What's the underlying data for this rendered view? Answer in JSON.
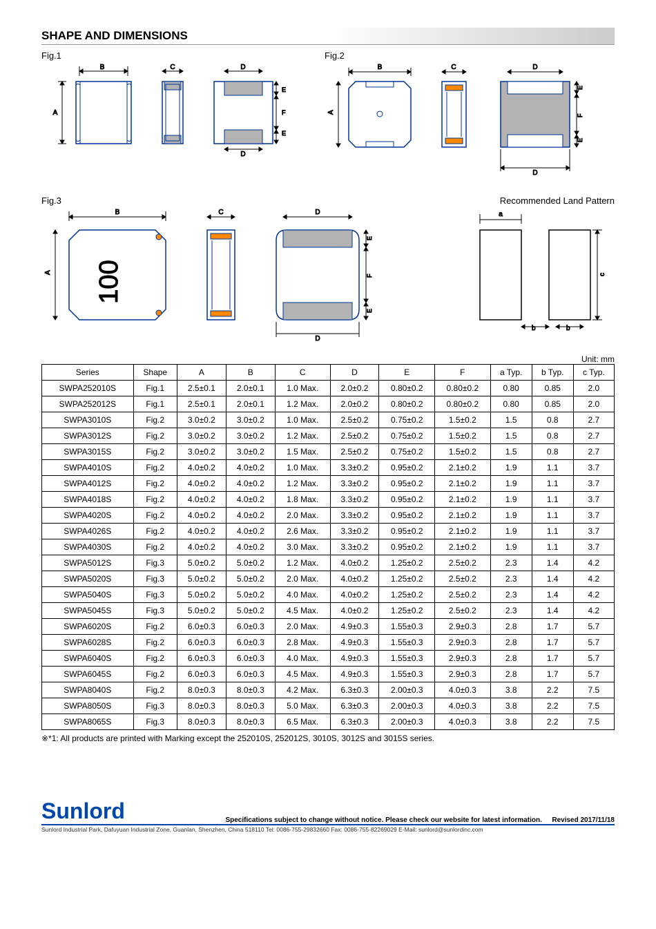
{
  "section_title": "SHAPE AND DIMENSIONS",
  "labels": {
    "fig1": "Fig.1",
    "fig2": "Fig.2",
    "fig3": "Fig.3",
    "land_pattern": "Recommended Land Pattern",
    "unit": "Unit: mm"
  },
  "table": {
    "columns": [
      "Series",
      "Shape",
      "A",
      "B",
      "C",
      "D",
      "E",
      "F",
      "a Typ.",
      "b Typ.",
      "c Typ."
    ],
    "rows": [
      [
        "SWPA252010S",
        "Fig.1",
        "2.5±0.1",
        "2.0±0.1",
        "1.0 Max.",
        "2.0±0.2",
        "0.80±0.2",
        "0.80±0.2",
        "0.80",
        "0.85",
        "2.0"
      ],
      [
        "SWPA252012S",
        "Fig.1",
        "2.5±0.1",
        "2.0±0.1",
        "1.2 Max.",
        "2.0±0.2",
        "0.80±0.2",
        "0.80±0.2",
        "0.80",
        "0.85",
        "2.0"
      ],
      [
        "SWPA3010S",
        "Fig.2",
        "3.0±0.2",
        "3.0±0.2",
        "1.0 Max.",
        "2.5±0.2",
        "0.75±0.2",
        "1.5±0.2",
        "1.5",
        "0.8",
        "2.7"
      ],
      [
        "SWPA3012S",
        "Fig.2",
        "3.0±0.2",
        "3.0±0.2",
        "1.2 Max.",
        "2.5±0.2",
        "0.75±0.2",
        "1.5±0.2",
        "1.5",
        "0.8",
        "2.7"
      ],
      [
        "SWPA3015S",
        "Fig.2",
        "3.0±0.2",
        "3.0±0.2",
        "1.5 Max.",
        "2.5±0.2",
        "0.75±0.2",
        "1.5±0.2",
        "1.5",
        "0.8",
        "2.7"
      ],
      [
        "SWPA4010S",
        "Fig.2",
        "4.0±0.2",
        "4.0±0.2",
        "1.0 Max.",
        "3.3±0.2",
        "0.95±0.2",
        "2.1±0.2",
        "1.9",
        "1.1",
        "3.7"
      ],
      [
        "SWPA4012S",
        "Fig.2",
        "4.0±0.2",
        "4.0±0.2",
        "1.2 Max.",
        "3.3±0.2",
        "0.95±0.2",
        "2.1±0.2",
        "1.9",
        "1.1",
        "3.7"
      ],
      [
        "SWPA4018S",
        "Fig.2",
        "4.0±0.2",
        "4.0±0.2",
        "1.8 Max.",
        "3.3±0.2",
        "0.95±0.2",
        "2.1±0.2",
        "1.9",
        "1.1",
        "3.7"
      ],
      [
        "SWPA4020S",
        "Fig.2",
        "4.0±0.2",
        "4.0±0.2",
        "2.0 Max.",
        "3.3±0.2",
        "0.95±0.2",
        "2.1±0.2",
        "1.9",
        "1.1",
        "3.7"
      ],
      [
        "SWPA4026S",
        "Fig.2",
        "4.0±0.2",
        "4.0±0.2",
        "2.6 Max.",
        "3.3±0.2",
        "0.95±0.2",
        "2.1±0.2",
        "1.9",
        "1.1",
        "3.7"
      ],
      [
        "SWPA4030S",
        "Fig.2",
        "4.0±0.2",
        "4.0±0.2",
        "3.0 Max.",
        "3.3±0.2",
        "0.95±0.2",
        "2.1±0.2",
        "1.9",
        "1.1",
        "3.7"
      ],
      [
        "SWPA5012S",
        "Fig.3",
        "5.0±0.2",
        "5.0±0.2",
        "1.2 Max.",
        "4.0±0.2",
        "1.25±0.2",
        "2.5±0.2",
        "2.3",
        "1.4",
        "4.2"
      ],
      [
        "SWPA5020S",
        "Fig.3",
        "5.0±0.2",
        "5.0±0.2",
        "2.0 Max.",
        "4.0±0.2",
        "1.25±0.2",
        "2.5±0.2",
        "2.3",
        "1.4",
        "4.2"
      ],
      [
        "SWPA5040S",
        "Fig.3",
        "5.0±0.2",
        "5.0±0.2",
        "4.0 Max.",
        "4.0±0.2",
        "1.25±0.2",
        "2.5±0.2",
        "2.3",
        "1.4",
        "4.2"
      ],
      [
        "SWPA5045S",
        "Fig.3",
        "5.0±0.2",
        "5.0±0.2",
        "4.5 Max.",
        "4.0±0.2",
        "1.25±0.2",
        "2.5±0.2",
        "2.3",
        "1.4",
        "4.2"
      ],
      [
        "SWPA6020S",
        "Fig.2",
        "6.0±0.3",
        "6.0±0.3",
        "2.0 Max.",
        "4.9±0.3",
        "1.55±0.3",
        "2.9±0.3",
        "2.8",
        "1.7",
        "5.7"
      ],
      [
        "SWPA6028S",
        "Fig.2",
        "6.0±0.3",
        "6.0±0.3",
        "2.8 Max.",
        "4.9±0.3",
        "1.55±0.3",
        "2.9±0.3",
        "2.8",
        "1.7",
        "5.7"
      ],
      [
        "SWPA6040S",
        "Fig.2",
        "6.0±0.3",
        "6.0±0.3",
        "4.0 Max.",
        "4.9±0.3",
        "1.55±0.3",
        "2.9±0.3",
        "2.8",
        "1.7",
        "5.7"
      ],
      [
        "SWPA6045S",
        "Fig.2",
        "6.0±0.3",
        "6.0±0.3",
        "4.5 Max.",
        "4.9±0.3",
        "1.55±0.3",
        "2.9±0.3",
        "2.8",
        "1.7",
        "5.7"
      ],
      [
        "SWPA8040S",
        "Fig.2",
        "8.0±0.3",
        "8.0±0.3",
        "4.2 Max.",
        "6.3±0.3",
        "2.00±0.3",
        "4.0±0.3",
        "3.8",
        "2.2",
        "7.5"
      ],
      [
        "SWPA8050S",
        "Fig.3",
        "8.0±0.3",
        "8.0±0.3",
        "5.0 Max.",
        "6.3±0.3",
        "2.00±0.3",
        "4.0±0.3",
        "3.8",
        "2.2",
        "7.5"
      ],
      [
        "SWPA8065S",
        "Fig.3",
        "8.0±0.3",
        "8.0±0.3",
        "6.5 Max.",
        "6.3±0.3",
        "2.00±0.3",
        "4.0±0.3",
        "3.8",
        "2.2",
        "7.5"
      ]
    ]
  },
  "footnote": "※*1: All products are printed with Marking except the 252010S, 252012S, 3010S, 3012S and 3015S series.",
  "footer": {
    "logo": "Sunlord",
    "note": "Specifications subject to change without notice. Please check our website for latest information.",
    "revised": "Revised 2017/11/18",
    "contact": "Sunlord Industrial Park, Dafuyuan Industrial Zone, Guanlan, Shenzhen, China 518110 Tel: 0086-755-29832660 Fax: 0086-755-82269029 E-Mail: sunlord@sunlordinc.com"
  },
  "diagram_style": {
    "stroke": "#000",
    "blue": "#003399",
    "orange": "#ff8800",
    "gray_fill": "#b3b3b3",
    "font": "Arial"
  }
}
